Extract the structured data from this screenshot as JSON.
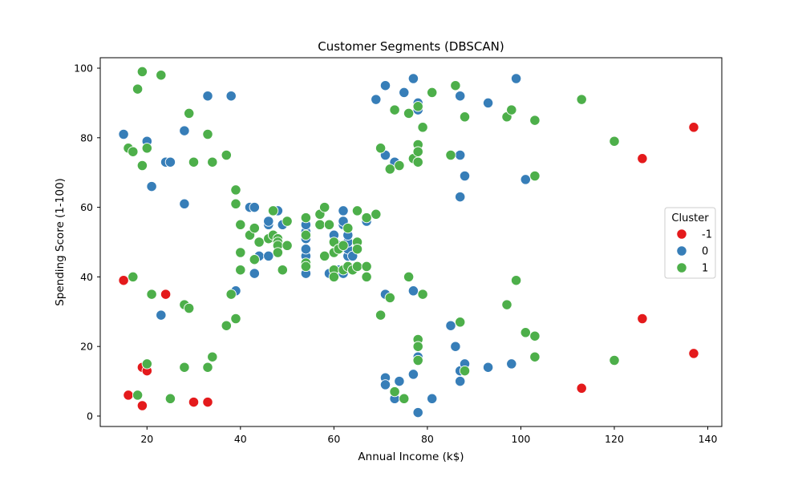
{
  "chart_data": {
    "type": "scatter",
    "title": "Customer Segments (DBSCAN)",
    "xlabel": "Annual Income (k$)",
    "ylabel": "Spending Score (1-100)",
    "xlim": [
      10,
      143
    ],
    "ylim": [
      -3,
      103
    ],
    "xticks": [
      20,
      40,
      60,
      80,
      100,
      120,
      140
    ],
    "yticks": [
      0,
      20,
      40,
      60,
      80,
      100
    ],
    "grid": false,
    "legend": {
      "title": "Cluster",
      "placement": "center-right"
    },
    "series": [
      {
        "name": "-1",
        "color": "#e41a1c",
        "points": [
          [
            15,
            39
          ],
          [
            16,
            6
          ],
          [
            19,
            14
          ],
          [
            19,
            3
          ],
          [
            20,
            13
          ],
          [
            24,
            35
          ],
          [
            30,
            4
          ],
          [
            33,
            4
          ],
          [
            113,
            8
          ],
          [
            126,
            74
          ],
          [
            126,
            28
          ],
          [
            137,
            83
          ],
          [
            137,
            18
          ]
        ]
      },
      {
        "name": "0",
        "color": "#377eb8",
        "points": [
          [
            15,
            81
          ],
          [
            20,
            79
          ],
          [
            21,
            66
          ],
          [
            23,
            29
          ],
          [
            24,
            73
          ],
          [
            25,
            73
          ],
          [
            28,
            82
          ],
          [
            28,
            61
          ],
          [
            33,
            92
          ],
          [
            38,
            92
          ],
          [
            39,
            36
          ],
          [
            42,
            60
          ],
          [
            43,
            60
          ],
          [
            43,
            41
          ],
          [
            44,
            46
          ],
          [
            46,
            55
          ],
          [
            46,
            56
          ],
          [
            46,
            46
          ],
          [
            48,
            59
          ],
          [
            49,
            55
          ],
          [
            54,
            41
          ],
          [
            54,
            46
          ],
          [
            54,
            48
          ],
          [
            54,
            51
          ],
          [
            54,
            53
          ],
          [
            54,
            55
          ],
          [
            59,
            41
          ],
          [
            60,
            52
          ],
          [
            61,
            49
          ],
          [
            61,
            42
          ],
          [
            62,
            55
          ],
          [
            62,
            56
          ],
          [
            62,
            59
          ],
          [
            62,
            41
          ],
          [
            63,
            43
          ],
          [
            63,
            46
          ],
          [
            63,
            48
          ],
          [
            63,
            50
          ],
          [
            63,
            52
          ],
          [
            64,
            46
          ],
          [
            67,
            56
          ],
          [
            69,
            91
          ],
          [
            71,
            95
          ],
          [
            71,
            75
          ],
          [
            71,
            35
          ],
          [
            71,
            11
          ],
          [
            71,
            9
          ],
          [
            73,
            73
          ],
          [
            73,
            5
          ],
          [
            74,
            10
          ],
          [
            75,
            93
          ],
          [
            77,
            97
          ],
          [
            77,
            36
          ],
          [
            77,
            12
          ],
          [
            78,
            90
          ],
          [
            78,
            88
          ],
          [
            78,
            17
          ],
          [
            78,
            1
          ],
          [
            81,
            5
          ],
          [
            85,
            26
          ],
          [
            86,
            20
          ],
          [
            87,
            92
          ],
          [
            87,
            75
          ],
          [
            87,
            63
          ],
          [
            87,
            13
          ],
          [
            87,
            10
          ],
          [
            88,
            69
          ],
          [
            88,
            15
          ],
          [
            93,
            90
          ],
          [
            93,
            14
          ],
          [
            98,
            15
          ],
          [
            99,
            97
          ],
          [
            101,
            68
          ]
        ]
      },
      {
        "name": "1",
        "color": "#4daf4a",
        "points": [
          [
            16,
            77
          ],
          [
            17,
            76
          ],
          [
            17,
            40
          ],
          [
            18,
            94
          ],
          [
            18,
            6
          ],
          [
            19,
            99
          ],
          [
            19,
            72
          ],
          [
            20,
            77
          ],
          [
            20,
            15
          ],
          [
            21,
            35
          ],
          [
            23,
            98
          ],
          [
            25,
            5
          ],
          [
            28,
            32
          ],
          [
            28,
            14
          ],
          [
            29,
            87
          ],
          [
            29,
            31
          ],
          [
            30,
            73
          ],
          [
            33,
            81
          ],
          [
            33,
            14
          ],
          [
            34,
            73
          ],
          [
            34,
            17
          ],
          [
            37,
            75
          ],
          [
            37,
            26
          ],
          [
            38,
            35
          ],
          [
            39,
            65
          ],
          [
            39,
            61
          ],
          [
            39,
            28
          ],
          [
            40,
            55
          ],
          [
            40,
            47
          ],
          [
            40,
            42
          ],
          [
            42,
            52
          ],
          [
            43,
            54
          ],
          [
            43,
            45
          ],
          [
            44,
            50
          ],
          [
            46,
            51
          ],
          [
            47,
            59
          ],
          [
            47,
            52
          ],
          [
            48,
            51
          ],
          [
            48,
            50
          ],
          [
            48,
            49
          ],
          [
            48,
            47
          ],
          [
            49,
            42
          ],
          [
            50,
            56
          ],
          [
            50,
            49
          ],
          [
            54,
            57
          ],
          [
            54,
            52
          ],
          [
            54,
            44
          ],
          [
            54,
            43
          ],
          [
            57,
            58
          ],
          [
            57,
            55
          ],
          [
            58,
            60
          ],
          [
            58,
            46
          ],
          [
            59,
            55
          ],
          [
            60,
            50
          ],
          [
            60,
            47
          ],
          [
            60,
            42
          ],
          [
            60,
            40
          ],
          [
            61,
            48
          ],
          [
            62,
            49
          ],
          [
            62,
            42
          ],
          [
            63,
            54
          ],
          [
            63,
            43
          ],
          [
            64,
            42
          ],
          [
            65,
            59
          ],
          [
            65,
            50
          ],
          [
            65,
            48
          ],
          [
            65,
            43
          ],
          [
            67,
            57
          ],
          [
            67,
            43
          ],
          [
            67,
            40
          ],
          [
            69,
            58
          ],
          [
            70,
            77
          ],
          [
            70,
            29
          ],
          [
            72,
            71
          ],
          [
            72,
            34
          ],
          [
            73,
            88
          ],
          [
            73,
            7
          ],
          [
            74,
            72
          ],
          [
            75,
            5
          ],
          [
            76,
            87
          ],
          [
            76,
            40
          ],
          [
            77,
            74
          ],
          [
            78,
            89
          ],
          [
            78,
            78
          ],
          [
            78,
            76
          ],
          [
            78,
            73
          ],
          [
            78,
            22
          ],
          [
            78,
            20
          ],
          [
            78,
            16
          ],
          [
            79,
            83
          ],
          [
            79,
            35
          ],
          [
            81,
            93
          ],
          [
            85,
            75
          ],
          [
            86,
            95
          ],
          [
            87,
            27
          ],
          [
            88,
            86
          ],
          [
            88,
            13
          ],
          [
            97,
            86
          ],
          [
            97,
            32
          ],
          [
            98,
            88
          ],
          [
            99,
            39
          ],
          [
            101,
            24
          ],
          [
            103,
            85
          ],
          [
            103,
            69
          ],
          [
            103,
            23
          ],
          [
            103,
            17
          ],
          [
            113,
            91
          ],
          [
            120,
            79
          ],
          [
            120,
            16
          ]
        ]
      }
    ]
  }
}
